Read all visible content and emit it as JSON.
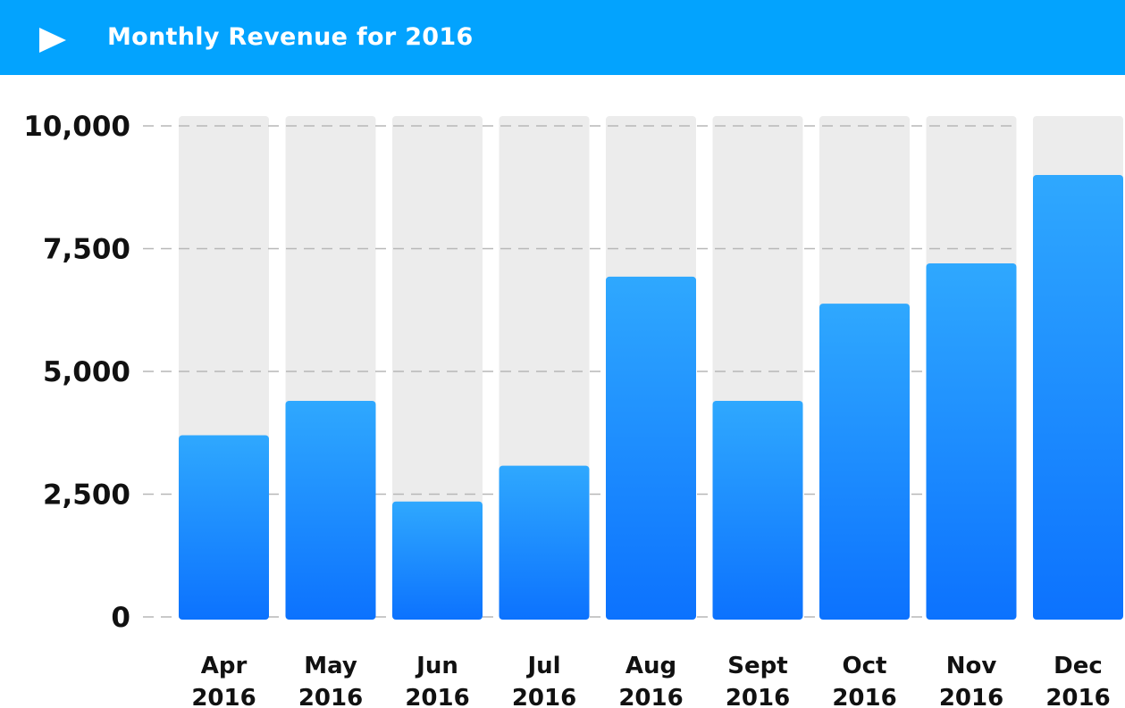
{
  "header": {
    "title": "Monthly Revenue for 2016",
    "icon": "play-icon",
    "background": "#03a3fe"
  },
  "chart_data": {
    "type": "bar",
    "title": "Monthly Revenue for 2016",
    "xlabel": "",
    "ylabel": "",
    "categories": [
      [
        "Apr",
        "2016"
      ],
      [
        "May",
        "2016"
      ],
      [
        "Jun",
        "2016"
      ],
      [
        "Jul",
        "2016"
      ],
      [
        "Aug",
        "2016"
      ],
      [
        "Sept",
        "2016"
      ],
      [
        "Oct",
        "2016"
      ],
      [
        "Nov",
        "2016"
      ],
      [
        "Dec",
        "2016"
      ]
    ],
    "values": [
      3700,
      4400,
      2350,
      3080,
      6930,
      4400,
      6380,
      7200,
      9000
    ],
    "ylim": [
      0,
      10000
    ],
    "yticks": [
      0,
      2500,
      5000,
      7500,
      10000
    ],
    "ytick_labels": [
      "0",
      "2,500",
      "5,000",
      "7,500",
      "10,000"
    ],
    "grid": true,
    "colors": {
      "bar_top": "#2fa8fe",
      "bar_bottom": "#0c72fe",
      "bar_track": "#ececec",
      "grid": "#b7b7b7"
    }
  }
}
